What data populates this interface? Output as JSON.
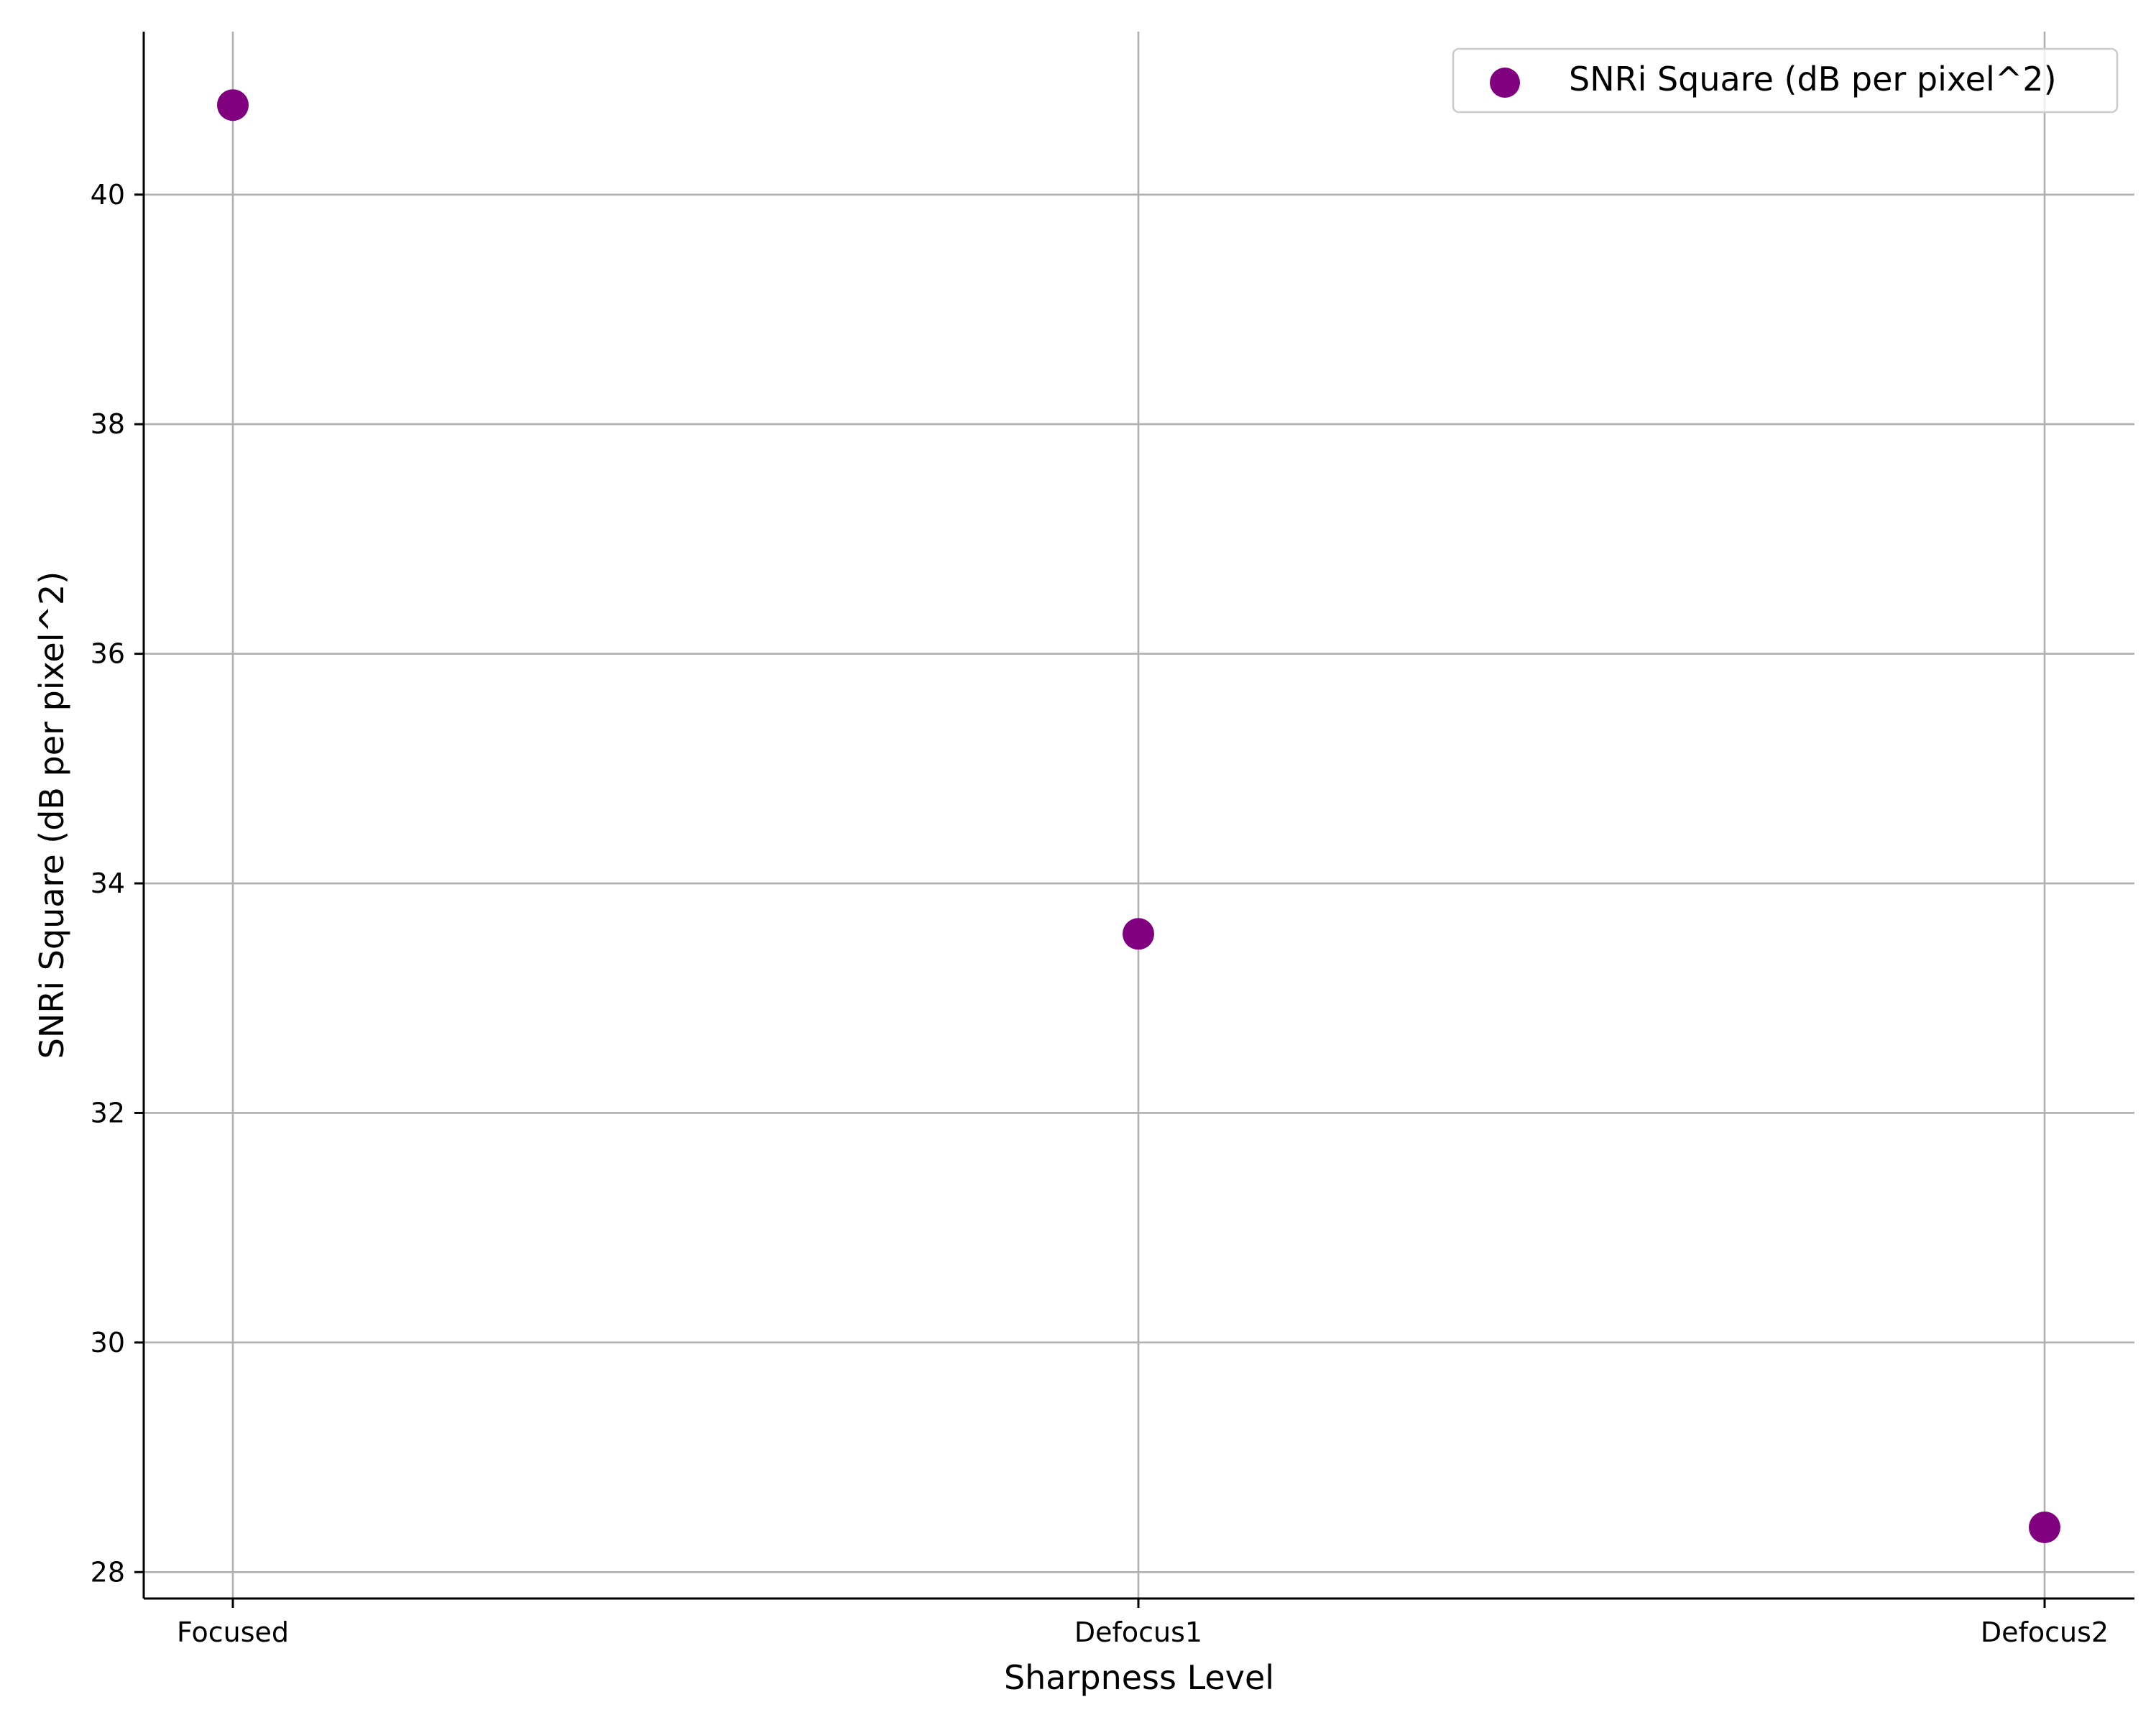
{
  "chart_data": {
    "type": "scatter",
    "categories": [
      "Focused",
      "Defocus1",
      "Defocus2"
    ],
    "series": [
      {
        "name": "SNRi Square (dB per pixel^2)",
        "values": [
          40.78,
          33.56,
          28.39
        ],
        "color": "#800080"
      }
    ],
    "xlabel": "Sharpness Level",
    "ylabel": "SNRi Square (dB per pixel^2)",
    "ylim": [
      27.77,
      41.42
    ],
    "yticks": [
      28,
      30,
      32,
      34,
      36,
      38,
      40
    ],
    "grid": true,
    "legend_position": "top-right"
  }
}
